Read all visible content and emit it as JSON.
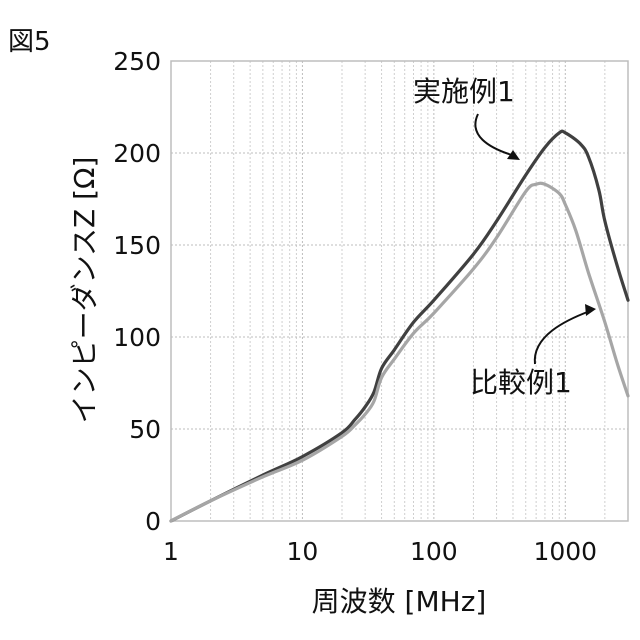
{
  "figure_label": "図5",
  "chart_data": {
    "type": "line",
    "title": "",
    "xlabel": "周波数 [MHz]",
    "ylabel": "インピーダンスZ [Ω]",
    "x_scale": "log",
    "xlim": [
      1,
      3000
    ],
    "ylim": [
      0,
      250
    ],
    "x_ticks": [
      1,
      10,
      100,
      1000
    ],
    "x_tick_labels": [
      "1",
      "10",
      "100",
      "1000"
    ],
    "y_ticks": [
      0,
      50,
      100,
      150,
      200,
      250
    ],
    "y_tick_labels": [
      "0",
      "50",
      "100",
      "150",
      "200",
      "250"
    ],
    "grid": true,
    "legend": "none",
    "series": [
      {
        "name": "実施例1",
        "color": "#404040",
        "x": [
          1,
          2,
          5,
          10,
          20,
          25,
          30,
          35,
          40,
          50,
          70,
          100,
          200,
          300,
          500,
          700,
          900,
          1000,
          1300,
          1500,
          1800,
          2000,
          2500,
          3000
        ],
        "y": [
          0,
          11,
          25,
          35,
          48,
          55,
          62,
          70,
          83,
          93,
          108,
          120,
          145,
          163,
          188,
          203,
          211,
          211,
          205,
          198,
          180,
          163,
          138,
          120
        ]
      },
      {
        "name": "比較例1",
        "color": "#a6a6a6",
        "x": [
          1,
          2,
          5,
          10,
          20,
          25,
          30,
          35,
          40,
          50,
          70,
          100,
          200,
          300,
          500,
          600,
          700,
          900,
          1000,
          1200,
          1500,
          2000,
          2500,
          3000
        ],
        "y": [
          0,
          11,
          24,
          33,
          46,
          52,
          58,
          65,
          78,
          88,
          102,
          113,
          137,
          154,
          179,
          183,
          183,
          178,
          172,
          158,
          135,
          108,
          85,
          68
        ]
      }
    ],
    "annotations": [
      {
        "text": "実施例1",
        "series": "実施例1"
      },
      {
        "text": "比較例1",
        "series": "比較例1"
      }
    ]
  }
}
